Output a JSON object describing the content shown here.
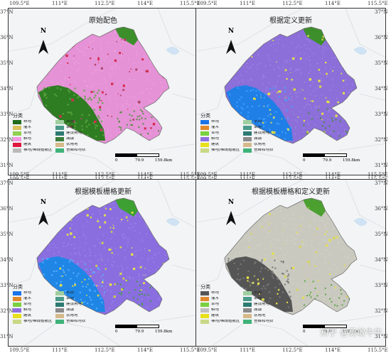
{
  "lon_ticks": [
    "109.5°E",
    "111°E",
    "112.5°E",
    "114°E",
    "115.5°E",
    "117°E"
  ],
  "lat_ticks": [
    "37°N",
    "36°N",
    "35°N",
    "34°N",
    "33°N",
    "32°N",
    "31°N"
  ],
  "north_label": "N",
  "legend_title": "分类",
  "scale_labels": [
    "0",
    "79.9",
    "159.8km"
  ],
  "legend_labels": [
    "林地",
    "水田",
    "灌木",
    "旱地",
    "草地",
    "建设用地",
    "耕地",
    "城镇",
    "建筑",
    "农用地",
    "裸地/稀疏植被区",
    "苔藓和地衣"
  ],
  "panels": [
    {
      "title": "原始配色",
      "colors": {
        "base": "#e592d6",
        "sec": "#f3a6e4",
        "forest": "#2f7d22",
        "forest2": "#5aa641",
        "edge": "#3d8f2b",
        "urban": "#d62b4f",
        "spot": "#b3446c"
      },
      "legend_colors": [
        "#1e6b1c",
        "#9fcfa0",
        "#d8c25c",
        "#4b9a8a",
        "#8fd14f",
        "#2d7a72",
        "#f398e0",
        "#3a7d3a",
        "#e0163f",
        "#d6b98a",
        "#b9b9b9",
        "#3fb27a"
      ]
    },
    {
      "title": "根据定义更新",
      "colors": {
        "base": "#8c6fd9",
        "sec": "#a48ae6",
        "forest": "#1f7fe6",
        "forest2": "#3fa0ff",
        "edge": "#3d8f2b",
        "urban": "#e6e04a",
        "spot": "#d4d24a"
      },
      "legend_colors": [
        "#1a73e8",
        "#9fcfa0",
        "#e08a2c",
        "#4b9a8a",
        "#7ad13f",
        "#2d7a72",
        "#8e6fe0",
        "#8a8a8a",
        "#e8e01a",
        "#d6b98a",
        "#c8d886",
        "#3fb27a"
      ]
    },
    {
      "title": "根据模板栅格更新",
      "colors": {
        "base": "#8a6ee0",
        "sec": "#a08ae8",
        "forest": "#1f86e6",
        "forest2": "#55b0ff",
        "edge": "#3da032",
        "urban": "#e6e04a",
        "spot": "#d4d24a"
      },
      "legend_colors": [
        "#1a73e8",
        "#9fcfa0",
        "#e08a2c",
        "#4b9a8a",
        "#7ad13f",
        "#2d7a72",
        "#8e6fe0",
        "#8a8a8a",
        "#e8e01a",
        "#d6b98a",
        "#c8d886",
        "#3fb27a"
      ]
    },
    {
      "title": "根据模板栅格和定义更新",
      "colors": {
        "base": "#c9c9c0",
        "sec": "#d6d6c6",
        "forest": "#555555",
        "forest2": "#7a7a7a",
        "edge": "#4ca030",
        "urban": "#e6e04a",
        "spot": "#d8d65a"
      },
      "legend_colors": [
        "#555555",
        "#9fcfa0",
        "#e08a2c",
        "#4b9a8a",
        "#7ad13f",
        "#2d7a72",
        "#bfbfbf",
        "#8a8a8a",
        "#e8e01a",
        "#d6b98a",
        "#c8d886",
        "#3fb27a"
      ]
    }
  ],
  "watermark": "知乎 @勇敢牛牛"
}
